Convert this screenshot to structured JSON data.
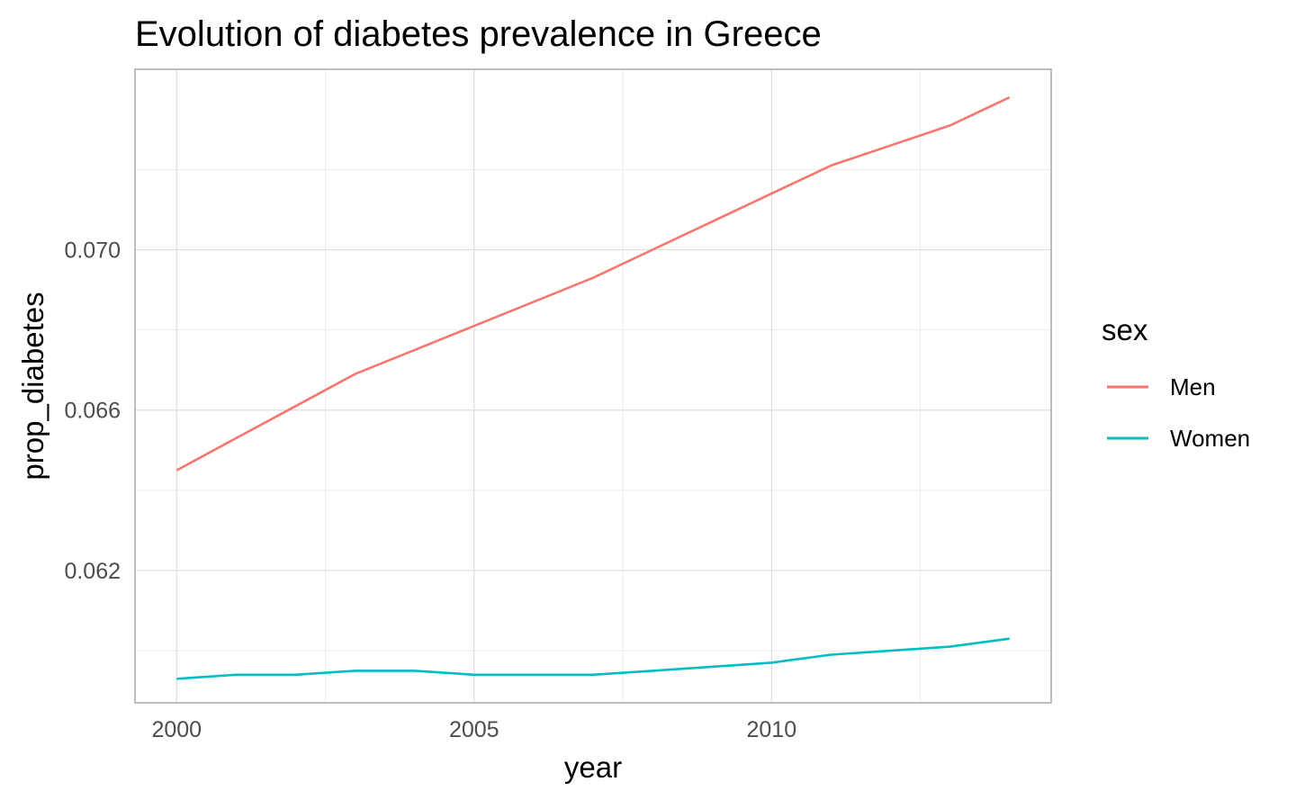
{
  "chart_data": {
    "type": "line",
    "title": "Evolution of diabetes prevalence in Greece",
    "xlabel": "year",
    "ylabel": "prop_diabetes",
    "xlim": [
      1999.3,
      2014.7
    ],
    "ylim": [
      0.0587,
      0.0745
    ],
    "x_ticks": [
      2000,
      2005,
      2010
    ],
    "x_tick_labels": [
      "2000",
      "2005",
      "2010"
    ],
    "x_minor_ticks": [
      2002.5,
      2007.5,
      2012.5
    ],
    "y_ticks": [
      0.062,
      0.066,
      0.07
    ],
    "y_tick_labels": [
      "0.062",
      "0.066",
      "0.070"
    ],
    "y_minor_ticks": [
      0.06,
      0.064,
      0.068,
      0.072
    ],
    "grid": true,
    "legend": {
      "title": "sex",
      "position": "right"
    },
    "x": [
      2000,
      2001,
      2002,
      2003,
      2004,
      2005,
      2006,
      2007,
      2008,
      2009,
      2010,
      2011,
      2012,
      2013,
      2014
    ],
    "series": [
      {
        "name": "Men",
        "color": "#F8766D",
        "values": [
          0.0645,
          0.0653,
          0.0661,
          0.0669,
          0.0675,
          0.0681,
          0.0687,
          0.0693,
          0.07,
          0.0707,
          0.0714,
          0.0721,
          0.0726,
          0.0731,
          0.0738
        ]
      },
      {
        "name": "Women",
        "color": "#00BFC4",
        "values": [
          0.0593,
          0.0594,
          0.0594,
          0.0595,
          0.0595,
          0.0594,
          0.0594,
          0.0594,
          0.0595,
          0.0596,
          0.0597,
          0.0599,
          0.06,
          0.0601,
          0.0603
        ]
      }
    ]
  }
}
